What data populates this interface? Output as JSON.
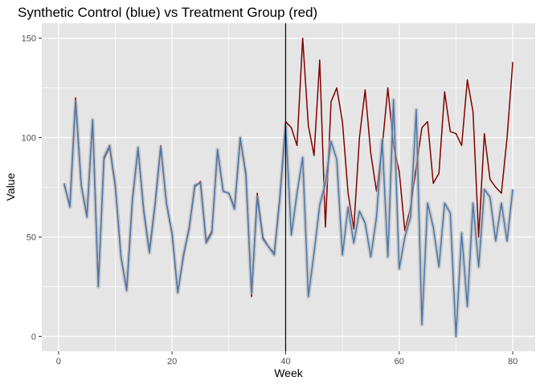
{
  "chart_data": {
    "type": "line",
    "title": "Synthetic Control (blue) vs Treatment Group (red)",
    "xlabel": "Week",
    "ylabel": "Value",
    "xlim": [
      -2.95,
      83.95
    ],
    "ylim": [
      -7.5,
      157.5
    ],
    "x_ticks": [
      0,
      20,
      40,
      60,
      80
    ],
    "y_ticks": [
      0,
      50,
      100,
      150
    ],
    "grid": true,
    "legend": "none",
    "intervention_week": 40,
    "colors": {
      "treatment": "#800000",
      "control": "#4a78ad",
      "band": "#b4b4b4",
      "panel": "#e5e5e5",
      "grid": "#ffffff",
      "vline": "#000000"
    },
    "series": [
      {
        "role": "treatment",
        "x": [
          1,
          2,
          3,
          4,
          5,
          6,
          7,
          8,
          9,
          10,
          11,
          12,
          13,
          14,
          15,
          16,
          17,
          18,
          19,
          20,
          21,
          22,
          23,
          24,
          25,
          26,
          27,
          28,
          29,
          30,
          31,
          32,
          33,
          34,
          35,
          36,
          37,
          38,
          39,
          40,
          41,
          42,
          43,
          44,
          45,
          46,
          47,
          48,
          49,
          50,
          51,
          52,
          53,
          54,
          55,
          56,
          57,
          58,
          59,
          60,
          61,
          62,
          63,
          64,
          65,
          66,
          67,
          68,
          69,
          70,
          71,
          72,
          73,
          74,
          75,
          76,
          77,
          78,
          79,
          80
        ],
        "values": [
          76,
          66,
          120,
          76,
          61,
          109,
          26,
          89,
          95,
          75,
          40,
          24,
          69,
          94,
          64,
          43,
          67,
          96,
          67,
          51,
          22,
          40,
          55,
          75,
          78,
          48,
          53,
          93,
          73,
          72,
          65,
          99,
          82,
          20,
          72,
          50,
          45,
          42,
          71,
          108,
          105,
          96,
          150,
          106,
          91,
          139,
          55,
          118,
          125,
          108,
          72,
          54,
          100,
          124,
          92,
          73,
          95,
          125,
          96,
          83,
          53,
          65,
          85,
          105,
          108,
          77,
          82,
          123,
          103,
          102,
          96,
          129,
          113,
          50,
          102,
          79,
          75,
          72,
          100,
          138
        ]
      },
      {
        "role": "control",
        "x": [
          1,
          2,
          3,
          4,
          5,
          6,
          7,
          8,
          9,
          10,
          11,
          12,
          13,
          14,
          15,
          16,
          17,
          18,
          19,
          20,
          21,
          22,
          23,
          24,
          25,
          26,
          27,
          28,
          29,
          30,
          31,
          32,
          33,
          34,
          35,
          36,
          37,
          38,
          39,
          40,
          41,
          42,
          43,
          44,
          45,
          46,
          47,
          48,
          49,
          50,
          51,
          52,
          53,
          54,
          55,
          56,
          57,
          58,
          59,
          60,
          61,
          62,
          63,
          64,
          65,
          66,
          67,
          68,
          69,
          70,
          71,
          72,
          73,
          74,
          75,
          76,
          77,
          78,
          79,
          80
        ],
        "values": [
          77,
          65,
          118,
          76,
          60,
          109,
          25,
          90,
          96,
          76,
          40,
          23,
          68,
          95,
          63,
          42,
          66,
          95,
          67,
          52,
          22,
          41,
          54,
          76,
          77,
          47,
          52,
          94,
          73,
          72,
          64,
          100,
          81,
          22,
          70,
          49,
          45,
          41,
          70,
          106,
          51,
          72,
          90,
          20,
          42,
          66,
          77,
          98,
          89,
          41,
          65,
          47,
          63,
          57,
          40,
          60,
          99,
          40,
          119,
          34,
          50,
          60,
          114,
          6,
          67,
          55,
          35,
          67,
          62,
          0,
          52,
          15,
          67,
          35,
          74,
          70,
          48,
          67,
          48,
          74
        ]
      }
    ]
  }
}
